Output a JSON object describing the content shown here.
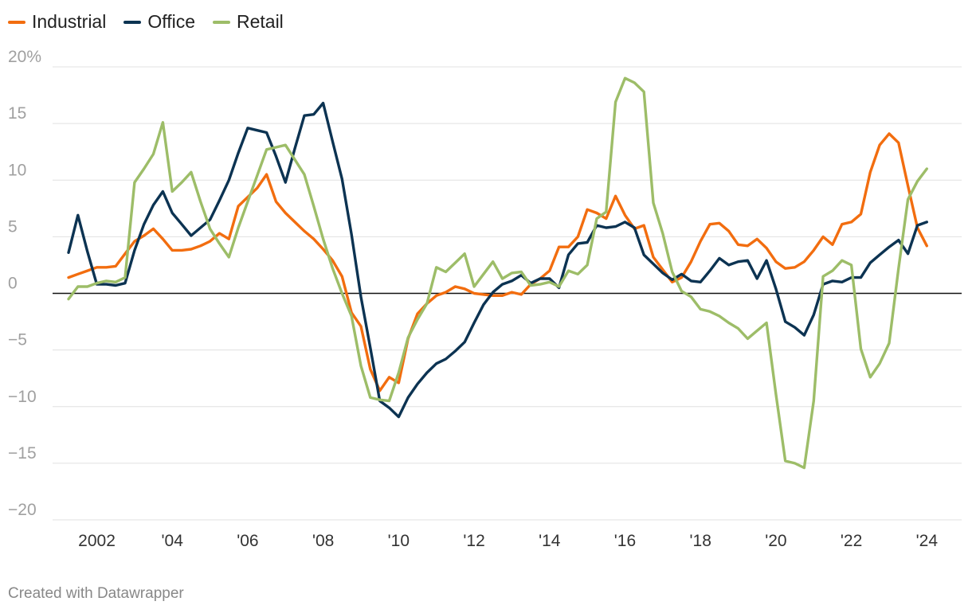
{
  "footer": {
    "credit": "Created with Datawrapper"
  },
  "chart_data": {
    "type": "line",
    "title": "",
    "xlabel": "",
    "ylabel": "",
    "x_start": 2001.25,
    "x_step": 0.25,
    "xlim": [
      2001.25,
      2024.5
    ],
    "ylim": [
      -20,
      20
    ],
    "y_ticks": [
      20,
      15,
      10,
      5,
      0,
      -5,
      -10,
      -15,
      -20
    ],
    "y_tick_labels": [
      "20%",
      "15",
      "10",
      "5",
      "0",
      "−5",
      "−10",
      "−15",
      "−20"
    ],
    "x_ticks": [
      2002,
      2004,
      2006,
      2008,
      2010,
      2012,
      2014,
      2016,
      2018,
      2020,
      2022,
      2024
    ],
    "x_tick_labels": [
      "2002",
      "'04",
      "'06",
      "'08",
      "'10",
      "'12",
      "'14",
      "'16",
      "'18",
      "'20",
      "'22",
      "'24"
    ],
    "grid": true,
    "legend_position": "top-left",
    "series": [
      {
        "name": "Industrial",
        "color": "#f26d0f",
        "values": [
          1.4,
          1.7,
          2.0,
          2.3,
          2.3,
          2.4,
          3.5,
          4.6,
          5.1,
          5.7,
          4.8,
          3.8,
          3.8,
          3.9,
          4.2,
          4.6,
          5.3,
          4.8,
          7.7,
          8.5,
          9.3,
          10.5,
          8.1,
          7.1,
          6.3,
          5.5,
          4.8,
          3.9,
          2.9,
          1.5,
          -1.7,
          -2.9,
          -6.7,
          -8.6,
          -7.4,
          -7.9,
          -4.0,
          -1.8,
          -0.9,
          -0.2,
          0.1,
          0.6,
          0.4,
          0.0,
          -0.1,
          -0.2,
          -0.2,
          0.1,
          -0.1,
          0.8,
          1.3,
          2.0,
          4.1,
          4.1,
          5.0,
          7.4,
          7.1,
          6.6,
          8.6,
          6.9,
          5.7,
          6.0,
          3.2,
          2.1,
          1.0,
          1.4,
          2.8,
          4.6,
          6.1,
          6.2,
          5.5,
          4.3,
          4.2,
          4.8,
          4.0,
          2.8,
          2.2,
          2.3,
          2.8,
          3.8,
          5.0,
          4.3,
          6.1,
          6.3,
          7.0,
          10.7,
          13.1,
          14.1,
          13.3,
          9.5,
          5.8,
          4.2
        ]
      },
      {
        "name": "Office",
        "color": "#0c3352",
        "values": [
          3.6,
          6.9,
          3.7,
          0.8,
          0.8,
          0.7,
          0.9,
          3.8,
          6.1,
          7.8,
          9.0,
          7.1,
          6.1,
          5.1,
          5.8,
          6.5,
          8.2,
          10.0,
          12.4,
          14.6,
          14.4,
          14.2,
          12.1,
          9.8,
          12.8,
          15.7,
          15.8,
          16.8,
          13.4,
          10.1,
          5.2,
          -0.3,
          -4.8,
          -9.5,
          -10.1,
          -10.9,
          -9.2,
          -8.0,
          -7.0,
          -6.2,
          -5.8,
          -5.1,
          -4.3,
          -2.6,
          -1.0,
          0.1,
          0.8,
          1.1,
          1.6,
          0.9,
          1.3,
          1.3,
          0.5,
          3.4,
          4.4,
          4.5,
          6.0,
          5.8,
          5.9,
          6.3,
          5.8,
          3.4,
          2.6,
          1.8,
          1.2,
          1.7,
          1.1,
          1.0,
          2.0,
          3.1,
          2.5,
          2.8,
          2.9,
          1.3,
          2.9,
          0.4,
          -2.5,
          -3.0,
          -3.7,
          -1.9,
          0.8,
          1.1,
          1.0,
          1.4,
          1.4,
          2.7,
          3.4,
          4.1,
          4.7,
          3.5,
          6.0,
          6.3
        ]
      },
      {
        "name": "Retail",
        "color": "#9dbd68",
        "values": [
          -0.5,
          0.6,
          0.6,
          0.9,
          1.1,
          1.0,
          1.4,
          9.8,
          11.0,
          12.3,
          15.1,
          9.0,
          9.8,
          10.7,
          8.1,
          5.7,
          4.4,
          3.2,
          5.8,
          8.1,
          10.4,
          12.7,
          12.9,
          13.1,
          11.8,
          10.5,
          7.7,
          4.8,
          2.2,
          0.0,
          -2.0,
          -6.4,
          -9.2,
          -9.4,
          -9.5,
          -7.0,
          -3.9,
          -2.3,
          -0.9,
          2.3,
          1.9,
          2.7,
          3.5,
          0.6,
          1.7,
          2.8,
          1.3,
          1.8,
          1.9,
          0.7,
          0.8,
          1.0,
          0.6,
          2.0,
          1.7,
          2.5,
          6.6,
          7.2,
          16.9,
          19.0,
          18.6,
          17.8,
          8.0,
          5.3,
          1.9,
          0.2,
          -0.3,
          -1.4,
          -1.6,
          -2.0,
          -2.6,
          -3.1,
          -4.0,
          -3.3,
          -2.6,
          -8.9,
          -14.8,
          -15.0,
          -15.4,
          -9.5,
          1.5,
          2.0,
          2.9,
          2.5,
          -4.9,
          -7.4,
          -6.2,
          -4.4,
          2.2,
          8.3,
          9.9,
          11.0
        ]
      }
    ]
  }
}
